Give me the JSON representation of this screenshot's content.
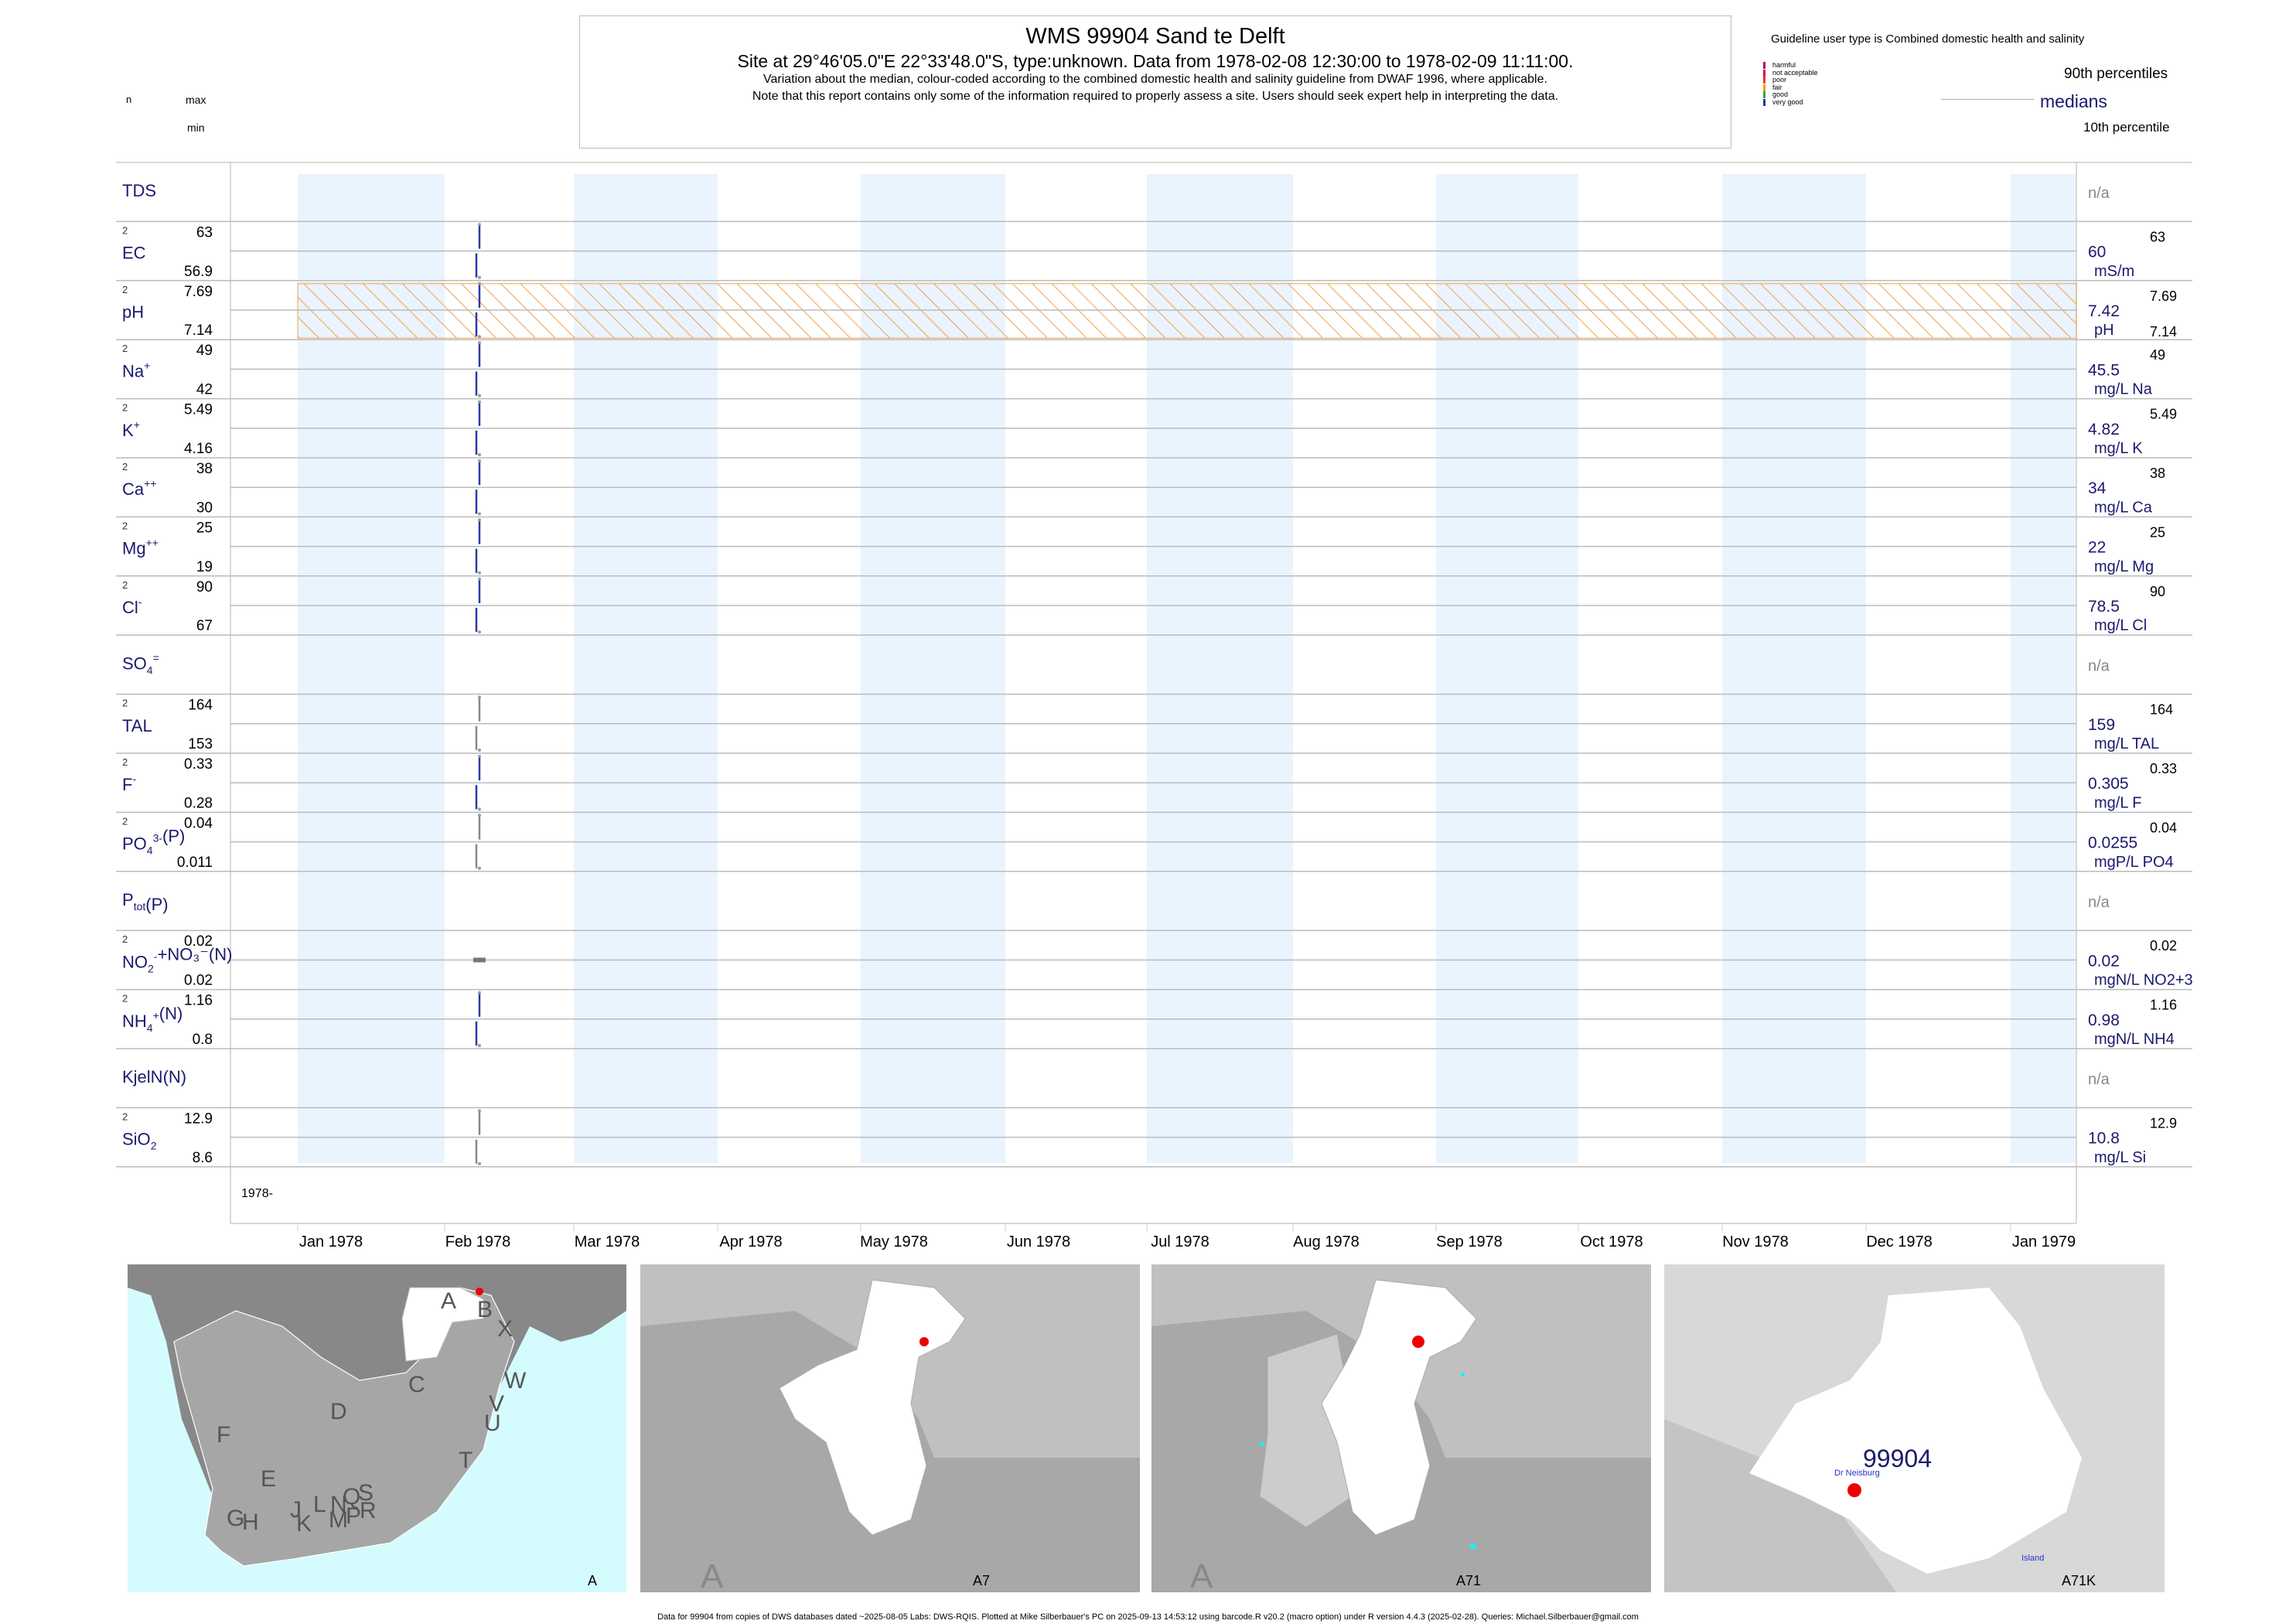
{
  "header": {
    "title": "WMS 99904  Sand te Delft",
    "subtitle": "Site at 29°46'05.0\"E 22°33'48.0\"S, type:unknown.  Data from 1978-02-08 12:30:00 to 1978-02-09 11:11:00.",
    "line3": "Variation about the median,  colour-coded according to the combined domestic health and salinity guideline from DWAF 1996, where applicable.",
    "line4": "Note that this report contains only some of the information required to properly assess a site. Users should seek expert help in interpreting the data.",
    "n_label": "n",
    "max_label": "max",
    "min_label": "min"
  },
  "legend": {
    "guideline_title": "Guideline user type is Combined domestic health and salinity",
    "categories": [
      {
        "label": "harmful",
        "color": "#aa0077"
      },
      {
        "label": "not acceptable",
        "color": "#dd0044"
      },
      {
        "label": "poor",
        "color": "#ee3333"
      },
      {
        "label": "fair",
        "color": "#ff9900"
      },
      {
        "label": "good",
        "color": "#33aa33"
      },
      {
        "label": "very good",
        "color": "#2233aa"
      }
    ],
    "p90_label": "90th percentiles",
    "medians_label": "medians",
    "p10_label": "10th percentile"
  },
  "chart_data": {
    "type": "strip",
    "x_ticks": [
      "Jan 1978",
      "Feb 1978",
      "Mar 1978",
      "Apr 1978",
      "May 1978",
      "Jun 1978",
      "Jul 1978",
      "Aug 1978",
      "Sep 1978",
      "Oct 1978",
      "Nov 1978",
      "Dec 1978",
      "Jan 1979"
    ],
    "year_label": "1978-",
    "series": [
      {
        "name": "TDS",
        "sup": "",
        "sub": "",
        "n": "",
        "max": "",
        "min": "",
        "median": "n/a",
        "unit": "",
        "p90": ""
      },
      {
        "name": "EC",
        "sup": "",
        "sub": "",
        "n": "2",
        "max": "63",
        "min": "56.9",
        "median": "60",
        "unit": "mS/m",
        "p90": "63"
      },
      {
        "name": "pH",
        "sup": "",
        "sub": "",
        "n": "2",
        "max": "7.69",
        "min": "7.14",
        "median": "7.42",
        "unit": "pH",
        "p90": "7.69",
        "p10": "7.14"
      },
      {
        "name": "Na",
        "sup": "+",
        "sub": "",
        "n": "2",
        "max": "49",
        "min": "42",
        "median": "45.5",
        "unit": "mg/L Na",
        "p90": "49"
      },
      {
        "name": "K",
        "sup": "+",
        "sub": "",
        "n": "2",
        "max": "5.49",
        "min": "4.16",
        "median": "4.82",
        "unit": "mg/L K",
        "p90": "5.49"
      },
      {
        "name": "Ca",
        "sup": "++",
        "sub": "",
        "n": "2",
        "max": "38",
        "min": "30",
        "median": "34",
        "unit": "mg/L Ca",
        "p90": "38"
      },
      {
        "name": "Mg",
        "sup": "++",
        "sub": "",
        "n": "2",
        "max": "25",
        "min": "19",
        "median": "22",
        "unit": "mg/L Mg",
        "p90": "25"
      },
      {
        "name": "Cl",
        "sup": "-",
        "sub": "",
        "n": "2",
        "max": "90",
        "min": "67",
        "median": "78.5",
        "unit": "mg/L Cl",
        "p90": "90"
      },
      {
        "name": "SO",
        "sup": "=",
        "sub": "4",
        "n": "",
        "max": "",
        "min": "",
        "median": "n/a",
        "unit": "",
        "p90": ""
      },
      {
        "name": "TAL",
        "sup": "",
        "sub": "",
        "n": "2",
        "max": "164",
        "min": "153",
        "median": "159",
        "unit": "mg/L TAL",
        "p90": "164"
      },
      {
        "name": "F",
        "sup": "-",
        "sub": "",
        "n": "2",
        "max": "0.33",
        "min": "0.28",
        "median": "0.305",
        "unit": "mg/L F",
        "p90": "0.33"
      },
      {
        "name": "PO",
        "sup": "3-",
        "sub": "4",
        "tail": "(P)",
        "n": "2",
        "max": "0.04",
        "min": "0.011",
        "median": "0.0255",
        "unit": "mgP/L PO4",
        "p90": "0.04"
      },
      {
        "name": "P",
        "sup": "",
        "sub": "tot",
        "tail": "(P)",
        "n": "",
        "max": "",
        "min": "",
        "median": "n/a",
        "unit": "",
        "p90": ""
      },
      {
        "name": "NO",
        "sup": "-",
        "sub": "2",
        "tail": "+NO₃⁻(N)",
        "n": "2",
        "max": "0.02",
        "min": "0.02",
        "median": "0.02",
        "unit": "mgN/L NO2+3",
        "p90": "0.02"
      },
      {
        "name": "NH",
        "sup": "+",
        "sub": "4",
        "tail": "(N)",
        "n": "2",
        "max": "1.16",
        "min": "0.8",
        "median": "0.98",
        "unit": "mgN/L NH4",
        "p90": "1.16"
      },
      {
        "name": "KjelN(N)",
        "sup": "",
        "sub": "",
        "n": "",
        "max": "",
        "min": "",
        "median": "n/a",
        "unit": "",
        "p90": ""
      },
      {
        "name": "SiO",
        "sup": "",
        "sub": "2",
        "n": "2",
        "max": "12.9",
        "min": "8.6",
        "median": "10.8",
        "unit": "mg/L Si",
        "p90": "12.9"
      }
    ]
  },
  "maps": [
    {
      "label": "A",
      "letters": [
        "A",
        "B",
        "X",
        "C",
        "W",
        "D",
        "V",
        "U",
        "T",
        "F",
        "E",
        "G",
        "H",
        "J",
        "K",
        "L",
        "M",
        "N",
        "P",
        "Q",
        "R",
        "S"
      ]
    },
    {
      "label": "A7",
      "corner": "A"
    },
    {
      "label": "A71",
      "corner": "A"
    },
    {
      "label": "A71K",
      "site": "99904",
      "place": "Dr Neisburg",
      "island": "Island"
    }
  ],
  "footer": "Data for 99904 from copies of DWS databases dated ~2025-08-05 Labs: DWS-RQIS. Plotted at Mike Silberbauer's PC on 2025-09-13 14:53:12 using barcode.R v20.2 (macro option) under R version 4.4.3 (2025-02-28). Queries: Michael.Silberbauer@gmail.com"
}
